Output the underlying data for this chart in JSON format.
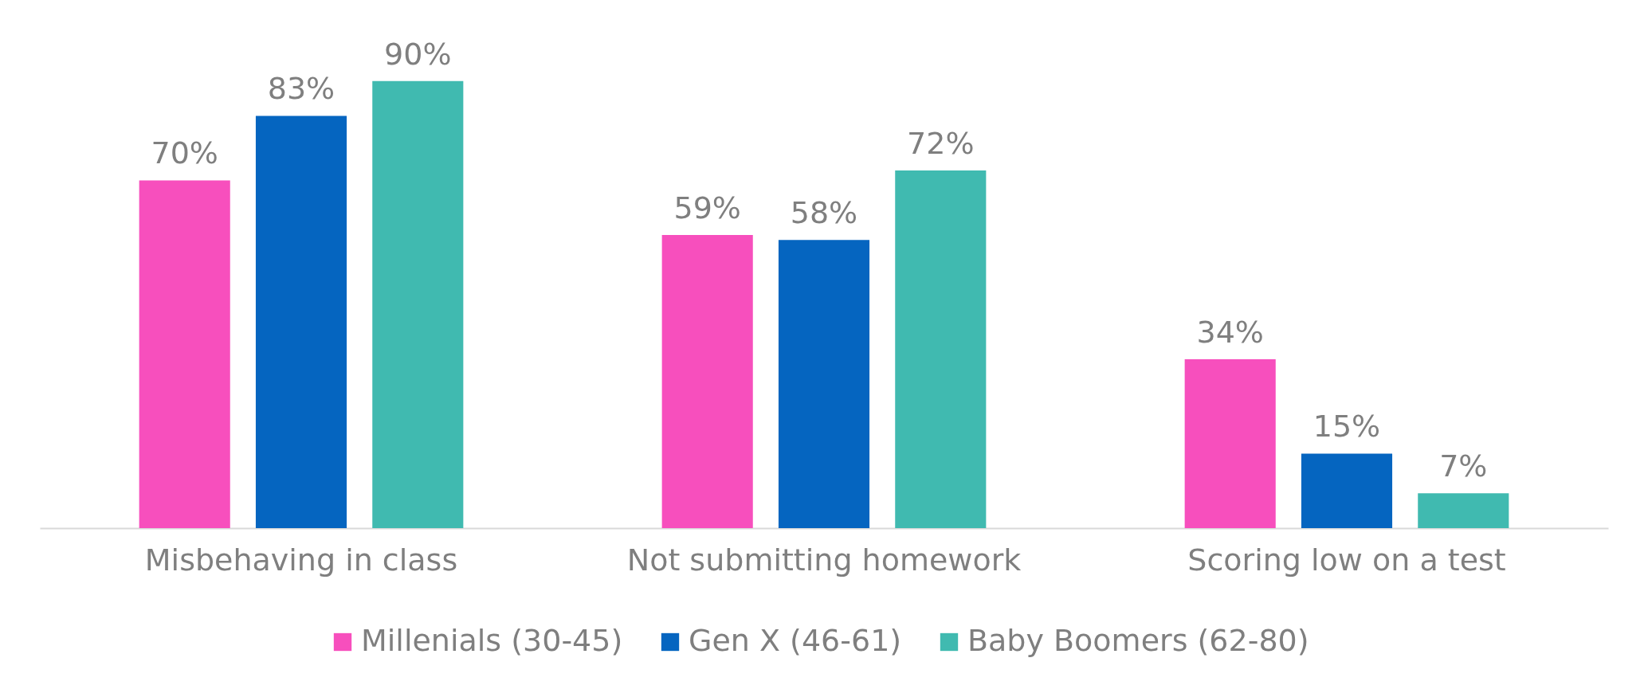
{
  "chart_data": {
    "type": "bar",
    "categories": [
      "Misbehaving in class",
      "Not submitting homework",
      "Scoring low on a test"
    ],
    "series": [
      {
        "name": "Millenials (30-45)",
        "color": "#f74fbd",
        "values": [
          70,
          59,
          34
        ],
        "value_labels": [
          "70%",
          "59%",
          "34%"
        ]
      },
      {
        "name": "Gen X (46-61)",
        "color": "#0565c0",
        "values": [
          83,
          58,
          15
        ],
        "value_labels": [
          "83%",
          "58%",
          "15%"
        ]
      },
      {
        "name": "Baby Boomers (62-80)",
        "color": "#40bab0",
        "values": [
          90,
          72,
          7
        ],
        "value_labels": [
          "90%",
          "72%",
          "7%"
        ]
      }
    ],
    "legend": "bottom"
  }
}
